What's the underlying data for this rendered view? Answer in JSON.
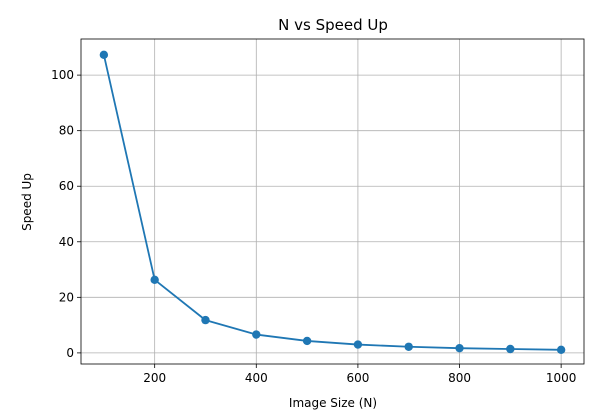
{
  "chart_data": {
    "type": "line",
    "title": "N vs Speed Up",
    "xlabel": "Image Size (N)",
    "ylabel": "Speed Up",
    "x": [
      100,
      200,
      300,
      400,
      500,
      600,
      700,
      800,
      900,
      1000
    ],
    "series": [
      {
        "values": [
          107.3,
          26.3,
          11.8,
          6.6,
          4.3,
          3.0,
          2.2,
          1.7,
          1.4,
          1.1
        ],
        "color": "#1f77b4",
        "marker": "circle"
      }
    ],
    "xlim": [
      55,
      1045
    ],
    "ylim": [
      -4,
      113
    ],
    "xticks": [
      200,
      400,
      600,
      800,
      1000
    ],
    "yticks": [
      0,
      20,
      40,
      60,
      80,
      100
    ],
    "grid": true,
    "grid_color": "#b0b0b0"
  }
}
